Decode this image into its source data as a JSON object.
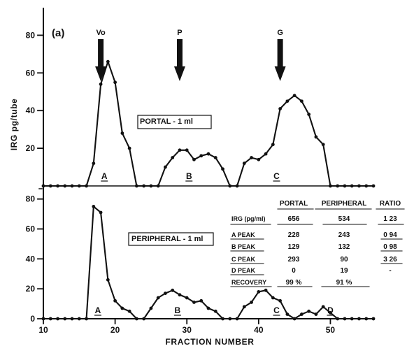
{
  "chart_data": {
    "type": "line",
    "panel_label": "(a)",
    "xlabel": "FRACTION NUMBER",
    "ylabel": "IRG pg/tube",
    "x_ticks": [
      "10",
      "20",
      "30",
      "40",
      "50"
    ],
    "y_ticks_top": [
      "20",
      "40",
      "60",
      "80"
    ],
    "y_ticks_bottom": [
      "0",
      "20",
      "40",
      "60",
      "80"
    ],
    "xlim": [
      10,
      56
    ],
    "ylim_top": [
      0,
      95
    ],
    "ylim_bottom": [
      0,
      85
    ],
    "grid": false,
    "markers": [
      {
        "label": "Vo",
        "x": 18
      },
      {
        "label": "P",
        "x": 29
      },
      {
        "label": "G",
        "x": 43
      }
    ],
    "panels": [
      {
        "name": "top",
        "box_label": "PORTAL - 1 ml",
        "series": [
          {
            "x": [
              10,
              11,
              12,
              13,
              14,
              15,
              16,
              17,
              18,
              19,
              20,
              21,
              22,
              23,
              24,
              25,
              26,
              27,
              28,
              29,
              30,
              31,
              32,
              33,
              34,
              35,
              36,
              37,
              38,
              39,
              40,
              41,
              42,
              43,
              44,
              45,
              46,
              47,
              48,
              49,
              50,
              51,
              52,
              53,
              54,
              55,
              56
            ],
            "values": [
              0,
              0,
              0,
              0,
              0,
              0,
              0,
              12,
              54,
              66,
              55,
              28,
              20,
              0,
              0,
              0,
              0,
              10,
              15,
              19,
              19,
              14,
              16,
              17,
              15,
              9,
              0,
              0,
              12,
              15,
              14,
              17,
              22,
              41,
              45,
              48,
              45,
              38,
              26,
              22,
              0,
              0,
              0,
              0,
              0,
              0,
              0
            ]
          }
        ],
        "peak_labels": [
          {
            "label": "A",
            "x": 18.5
          },
          {
            "label": "B",
            "x": 30.3
          },
          {
            "label": "C",
            "x": 42.5
          }
        ]
      },
      {
        "name": "bottom",
        "box_label": "PERIPHERAL - 1 ml",
        "series": [
          {
            "x": [
              10,
              11,
              12,
              13,
              14,
              15,
              16,
              17,
              18,
              19,
              20,
              21,
              22,
              23,
              24,
              25,
              26,
              27,
              28,
              29,
              30,
              31,
              32,
              33,
              34,
              35,
              36,
              37,
              38,
              39,
              40,
              41,
              42,
              43,
              44,
              45,
              46,
              47,
              48,
              49,
              50,
              51,
              52,
              53,
              54,
              55,
              56
            ],
            "values": [
              0,
              0,
              0,
              0,
              0,
              0,
              0,
              75,
              71,
              26,
              12,
              7,
              5,
              0,
              0,
              7,
              14,
              17,
              19,
              16,
              14,
              11,
              12,
              7,
              5,
              0,
              0,
              0,
              8,
              11,
              18,
              19,
              14,
              12,
              3,
              0,
              3,
              5,
              3,
              8,
              4,
              0,
              0,
              0,
              0,
              0,
              0
            ]
          }
        ],
        "peak_labels": [
          {
            "label": "A",
            "x": 17.6
          },
          {
            "label": "B",
            "x": 28.7
          },
          {
            "label": "C",
            "x": 42.5
          },
          {
            "label": "D",
            "x": 50
          }
        ]
      }
    ],
    "table": {
      "columns": [
        "",
        "PORTAL",
        "PERIPHERAL",
        "RATIO"
      ],
      "rows": [
        [
          "IRG (pg/ml)",
          "656",
          "534",
          "1 23"
        ],
        [
          "A PEAK",
          "228",
          "243",
          "0 94"
        ],
        [
          "B PEAK",
          "129",
          "132",
          "0 98"
        ],
        [
          "C PEAK",
          "293",
          "90",
          "3 26"
        ],
        [
          "D PEAK",
          "0",
          "19",
          "-"
        ],
        [
          "RECOVERY",
          "99 %",
          "91 %",
          ""
        ]
      ]
    }
  }
}
